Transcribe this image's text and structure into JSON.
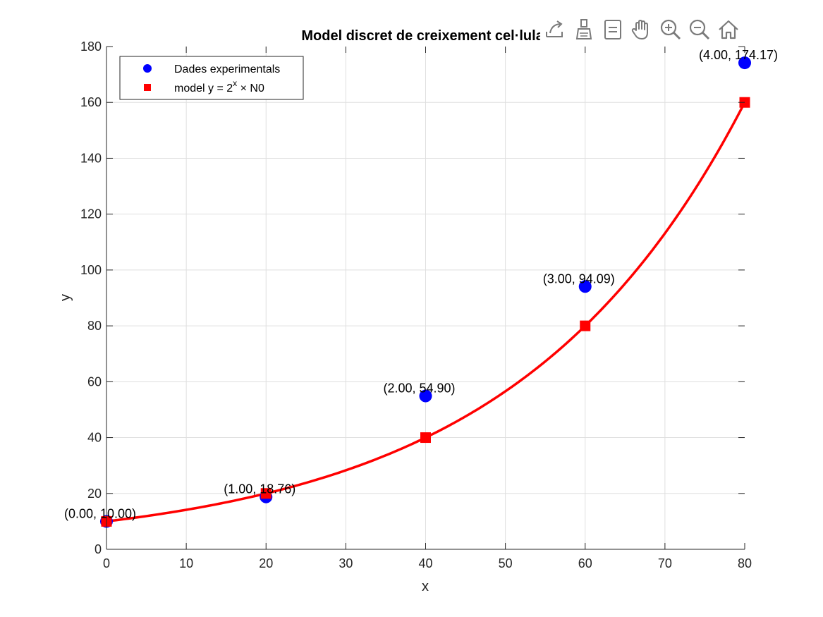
{
  "toolbar": {
    "tools": [
      {
        "name": "export-icon"
      },
      {
        "name": "brush-icon"
      },
      {
        "name": "datatip-icon"
      },
      {
        "name": "pan-hand-icon"
      },
      {
        "name": "zoom-in-icon"
      },
      {
        "name": "zoom-out-icon"
      },
      {
        "name": "home-icon"
      }
    ]
  },
  "chart_data": {
    "type": "scatter",
    "title": "Model discret de creixement cel·lular",
    "xlabel": "x",
    "ylabel": "y",
    "xlim": [
      0,
      80
    ],
    "ylim": [
      0,
      180
    ],
    "xticks": [
      0,
      10,
      20,
      30,
      40,
      50,
      60,
      70,
      80
    ],
    "yticks": [
      0,
      20,
      40,
      60,
      80,
      100,
      120,
      140,
      160,
      180
    ],
    "grid": true,
    "legend_position": "top-left",
    "series": [
      {
        "name": "Dades experimentals",
        "marker": "circle",
        "color": "#0000ff",
        "x": [
          0,
          20,
          40,
          60,
          80
        ],
        "y": [
          10.0,
          18.76,
          54.9,
          94.09,
          174.17
        ]
      },
      {
        "name": "model y = 2^x × N0",
        "marker": "square",
        "color": "#ff0000",
        "x": [
          0,
          20,
          40,
          60,
          80
        ],
        "y": [
          10,
          20,
          40,
          80,
          160
        ]
      }
    ],
    "legend": [
      {
        "prefix": "Dades experimentals",
        "sup": "",
        "suffix": ""
      },
      {
        "prefix": "model y = 2",
        "sup": "x",
        "suffix": " × N0"
      }
    ],
    "curve": {
      "color": "#ff0000",
      "N0": 10,
      "x_step": 20
    },
    "annotations": [
      {
        "x": 0,
        "y": 10.0,
        "text": "(0.00, 10.00)"
      },
      {
        "x": 20,
        "y": 18.76,
        "text": "(1.00, 18.76)"
      },
      {
        "x": 40,
        "y": 54.9,
        "text": "(2.00, 54.90)"
      },
      {
        "x": 60,
        "y": 94.09,
        "text": "(3.00, 94.09)"
      },
      {
        "x": 80,
        "y": 174.17,
        "text": "(4.00, 174.17)"
      }
    ]
  }
}
